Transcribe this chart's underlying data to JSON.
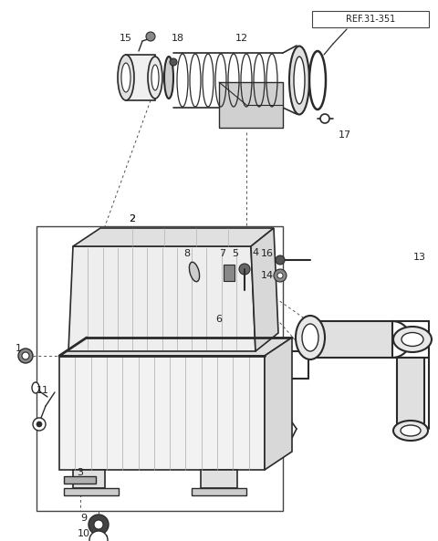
{
  "bg_color": "#ffffff",
  "fig_width": 4.8,
  "fig_height": 5.93,
  "dpi": 100,
  "ref_text": "REF.31-351",
  "lc": "#2a2a2a",
  "dc": "#555555"
}
